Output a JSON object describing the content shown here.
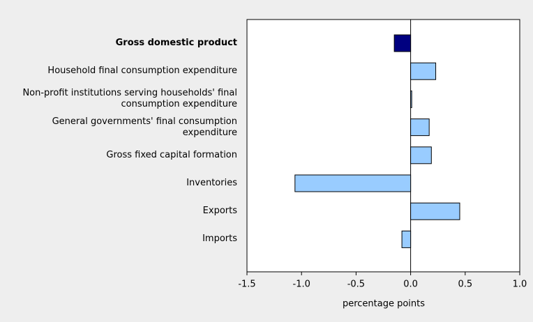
{
  "chart_data": {
    "type": "bar",
    "orientation": "horizontal",
    "categories": [
      "Gross domestic product",
      "Household final consumption expenditure",
      "Non-profit institutions serving households' final consumption expenditure",
      "General governments' final consumption expenditure",
      "Gross fixed capital formation",
      "Inventories",
      "Exports",
      "Imports"
    ],
    "values": [
      -0.15,
      0.23,
      0.01,
      0.17,
      0.19,
      -1.06,
      0.45,
      -0.08
    ],
    "colors": [
      "#000080",
      "#99ccff",
      "#99ccff",
      "#99ccff",
      "#99ccff",
      "#99ccff",
      "#99ccff",
      "#99ccff"
    ],
    "xlabel": "percentage points",
    "xlim": [
      -1.5,
      1.0
    ],
    "xticks": [
      -1.5,
      {
        "value": -1.0,
        "label": "-1.0"
      },
      -0.5,
      {
        "value": 0,
        "label": "0.0"
      },
      0.5,
      {
        "value": 1.0,
        "label": "1.0"
      }
    ]
  }
}
